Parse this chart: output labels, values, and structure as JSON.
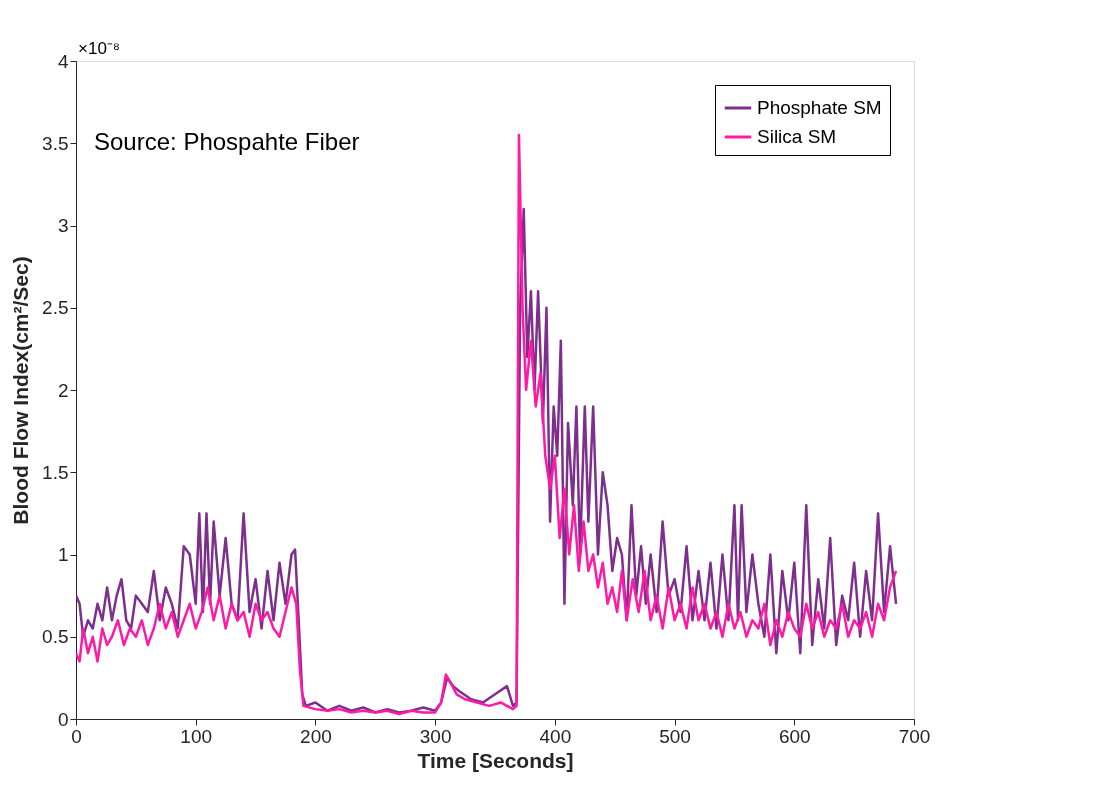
{
  "chart_data": {
    "type": "line",
    "xlabel": "Time [Seconds]",
    "ylabel": "Blood Flow Index(cm²/Sec)",
    "annotations": [
      "×10⁻⁸",
      "Source: Phospahte Fiber"
    ],
    "xlim": [
      0,
      700
    ],
    "xticks": [
      0,
      100,
      200,
      300,
      400,
      500,
      600,
      700
    ],
    "ylim": [
      0,
      4
    ],
    "yticks": [
      0,
      0.5,
      1,
      1.5,
      2,
      2.5,
      3,
      3.5,
      4
    ],
    "grid": false,
    "legend": "top right",
    "marker": "none",
    "line_style": "solid",
    "series": [
      {
        "name": "Phosphate SM",
        "color": "#7e2f8e",
        "x": [
          0,
          3,
          6,
          10,
          14,
          18,
          22,
          26,
          30,
          34,
          38,
          42,
          46,
          50,
          55,
          60,
          65,
          70,
          75,
          80,
          85,
          90,
          95,
          100,
          103,
          106,
          109,
          112,
          115,
          120,
          125,
          130,
          135,
          140,
          145,
          150,
          155,
          160,
          165,
          170,
          175,
          180,
          183,
          186,
          189,
          192,
          200,
          210,
          220,
          230,
          240,
          250,
          260,
          270,
          280,
          290,
          300,
          305,
          310,
          315,
          320,
          330,
          340,
          350,
          360,
          365,
          368,
          371,
          374,
          377,
          380,
          383,
          386,
          390,
          393,
          396,
          399,
          402,
          405,
          408,
          411,
          415,
          418,
          421,
          425,
          428,
          432,
          436,
          440,
          444,
          448,
          452,
          456,
          460,
          464,
          468,
          472,
          476,
          480,
          485,
          490,
          495,
          500,
          505,
          510,
          515,
          520,
          525,
          530,
          535,
          540,
          545,
          550,
          553,
          556,
          560,
          565,
          570,
          575,
          580,
          585,
          590,
          595,
          600,
          605,
          610,
          615,
          620,
          625,
          630,
          635,
          640,
          645,
          650,
          655,
          660,
          665,
          670,
          675,
          680,
          685
        ],
        "values": [
          0.75,
          0.7,
          0.5,
          0.6,
          0.55,
          0.7,
          0.6,
          0.8,
          0.6,
          0.75,
          0.85,
          0.6,
          0.55,
          0.75,
          0.7,
          0.65,
          0.9,
          0.6,
          0.8,
          0.7,
          0.55,
          1.05,
          1.0,
          0.7,
          1.25,
          0.65,
          1.25,
          0.7,
          1.2,
          0.75,
          1.1,
          0.7,
          0.6,
          1.25,
          0.65,
          0.85,
          0.55,
          0.9,
          0.6,
          0.95,
          0.7,
          1.0,
          1.03,
          0.6,
          0.15,
          0.08,
          0.1,
          0.05,
          0.08,
          0.05,
          0.07,
          0.04,
          0.06,
          0.04,
          0.05,
          0.07,
          0.05,
          0.1,
          0.25,
          0.2,
          0.17,
          0.12,
          0.1,
          0.15,
          0.2,
          0.08,
          0.1,
          2.5,
          3.1,
          2.2,
          2.6,
          2.0,
          2.6,
          1.8,
          2.5,
          1.2,
          1.9,
          1.6,
          2.3,
          0.7,
          1.8,
          1.3,
          1.9,
          1.0,
          1.9,
          1.2,
          1.9,
          1.0,
          1.5,
          1.3,
          0.9,
          1.1,
          1.0,
          0.6,
          1.3,
          0.75,
          1.05,
          0.7,
          1.0,
          0.65,
          1.2,
          0.75,
          0.85,
          0.65,
          1.05,
          0.6,
          0.9,
          0.6,
          0.95,
          0.55,
          1.0,
          0.6,
          1.3,
          0.6,
          1.3,
          0.65,
          1.0,
          0.7,
          0.5,
          1.0,
          0.4,
          0.9,
          0.6,
          0.95,
          0.4,
          1.3,
          0.45,
          0.85,
          0.55,
          1.1,
          0.45,
          0.75,
          0.6,
          0.95,
          0.5,
          0.9,
          0.6,
          1.25,
          0.65,
          1.05,
          0.7
        ]
      },
      {
        "name": "Silica SM",
        "color": "#ff1aa6",
        "x": [
          0,
          3,
          6,
          10,
          14,
          18,
          22,
          26,
          30,
          35,
          40,
          45,
          50,
          55,
          60,
          65,
          70,
          75,
          80,
          85,
          90,
          95,
          100,
          105,
          110,
          115,
          120,
          125,
          130,
          135,
          140,
          145,
          150,
          155,
          160,
          165,
          170,
          175,
          180,
          184,
          187,
          190,
          200,
          210,
          220,
          230,
          240,
          250,
          260,
          270,
          280,
          290,
          300,
          305,
          309,
          313,
          318,
          325,
          335,
          345,
          355,
          365,
          368,
          370,
          373,
          376,
          380,
          384,
          388,
          392,
          396,
          400,
          404,
          408,
          412,
          416,
          420,
          424,
          428,
          432,
          436,
          440,
          444,
          448,
          452,
          456,
          460,
          465,
          470,
          475,
          480,
          485,
          490,
          495,
          500,
          505,
          510,
          515,
          520,
          525,
          530,
          535,
          540,
          545,
          550,
          555,
          560,
          565,
          570,
          575,
          580,
          585,
          590,
          595,
          600,
          605,
          610,
          615,
          620,
          625,
          630,
          635,
          640,
          645,
          650,
          655,
          660,
          665,
          670,
          675,
          680,
          685
        ],
        "values": [
          0.4,
          0.35,
          0.55,
          0.4,
          0.5,
          0.35,
          0.55,
          0.45,
          0.5,
          0.6,
          0.45,
          0.55,
          0.5,
          0.6,
          0.45,
          0.55,
          0.7,
          0.55,
          0.65,
          0.5,
          0.6,
          0.7,
          0.55,
          0.65,
          0.8,
          0.6,
          0.75,
          0.55,
          0.7,
          0.6,
          0.65,
          0.5,
          0.7,
          0.6,
          0.65,
          0.55,
          0.5,
          0.65,
          0.8,
          0.7,
          0.3,
          0.08,
          0.06,
          0.05,
          0.06,
          0.04,
          0.05,
          0.04,
          0.05,
          0.03,
          0.05,
          0.04,
          0.04,
          0.1,
          0.27,
          0.22,
          0.15,
          0.12,
          0.1,
          0.08,
          0.1,
          0.06,
          0.08,
          3.55,
          2.5,
          2.0,
          2.3,
          1.9,
          2.1,
          1.6,
          1.4,
          1.6,
          1.1,
          1.4,
          1.0,
          1.3,
          0.9,
          1.2,
          0.9,
          1.0,
          0.8,
          0.95,
          0.7,
          0.8,
          0.65,
          0.9,
          0.6,
          0.85,
          0.65,
          0.9,
          0.6,
          0.75,
          0.55,
          0.8,
          0.6,
          0.7,
          0.55,
          0.8,
          0.6,
          0.7,
          0.55,
          0.65,
          0.5,
          0.7,
          0.55,
          0.65,
          0.5,
          0.6,
          0.55,
          0.7,
          0.45,
          0.6,
          0.5,
          0.65,
          0.55,
          0.5,
          0.7,
          0.55,
          0.65,
          0.5,
          0.6,
          0.55,
          0.7,
          0.5,
          0.6,
          0.55,
          0.65,
          0.5,
          0.7,
          0.6,
          0.8,
          0.9
        ]
      }
    ]
  }
}
